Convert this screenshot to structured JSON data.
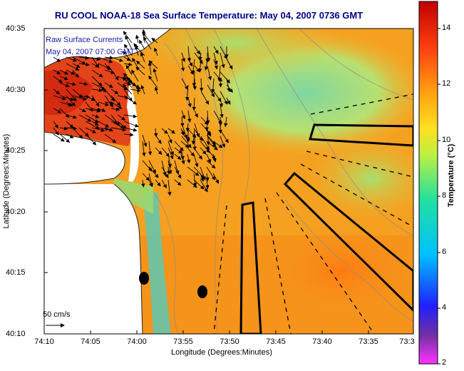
{
  "title": "RU COOL  NOAA-18  Sea Surface Temperature:  May 04, 2007 0736 GMT",
  "legend": {
    "line1": "Raw Surface Currents",
    "line2": "May 04, 2007 07:00 GMT"
  },
  "axes": {
    "xlabel": "Longitude (Degrees:Minutes)",
    "ylabel": "Latitude (Degrees:Minutes)",
    "xticks": [
      "74:10",
      "74:05",
      "74:00",
      "73:55",
      "73:50",
      "73:45",
      "73:40",
      "73:35",
      "73:3"
    ],
    "yticks": [
      "40:35",
      "40:30",
      "40:25",
      "40:20",
      "40:15",
      "40:10"
    ]
  },
  "scale": {
    "label": "50 cm/s"
  },
  "colorbar": {
    "title": "Temperature (°C)",
    "ticks": [
      "14",
      "12",
      "10",
      "8",
      "6",
      "4",
      "2"
    ],
    "range": [
      2,
      15
    ]
  },
  "colors": {
    "title": "#00008b",
    "land": "#ffffff",
    "sst_warm": "#f08c1e",
    "sst_cool": "#5ec8b4"
  }
}
